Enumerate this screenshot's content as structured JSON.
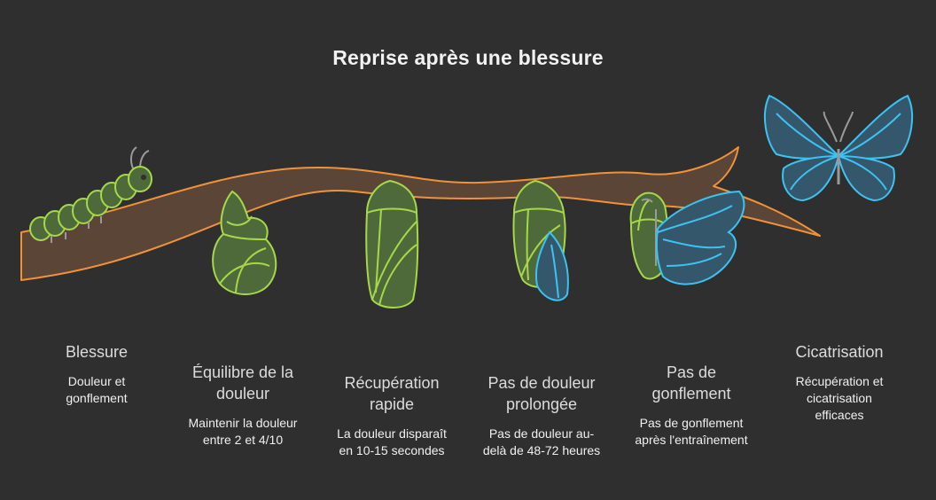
{
  "title": "Reprise après une blessure",
  "stages": [
    {
      "heading": "Blessure",
      "text": "Douleur et gonflement",
      "icon": "caterpillar-icon"
    },
    {
      "heading": "Équilibre de la douleur",
      "text": "Maintenir la douleur entre 2 et 4/10",
      "icon": "chrysalis-early-icon"
    },
    {
      "heading": "Récupération rapide",
      "text": "La douleur disparaît en 10-15 secondes",
      "icon": "chrysalis-icon"
    },
    {
      "heading": "Pas de douleur prolongée",
      "text": "Pas de douleur au-delà de 48-72 heures",
      "icon": "chrysalis-opening-icon"
    },
    {
      "heading": "Pas de gonflement",
      "text": "Pas de gonflement après l'entraînement",
      "icon": "emerging-butterfly-icon"
    },
    {
      "heading": "Cicatrisation",
      "text": "Récupération et cicatrisation efficaces",
      "icon": "butterfly-icon"
    }
  ],
  "colors": {
    "background": "#2f2f2f",
    "branch_fill": "#5a4536",
    "branch_stroke": "#f0923a",
    "green_fill": "#4e6a3a",
    "green_stroke": "#a6d84a",
    "blue_fill": "#35576c",
    "blue_stroke": "#3cc3f2"
  }
}
